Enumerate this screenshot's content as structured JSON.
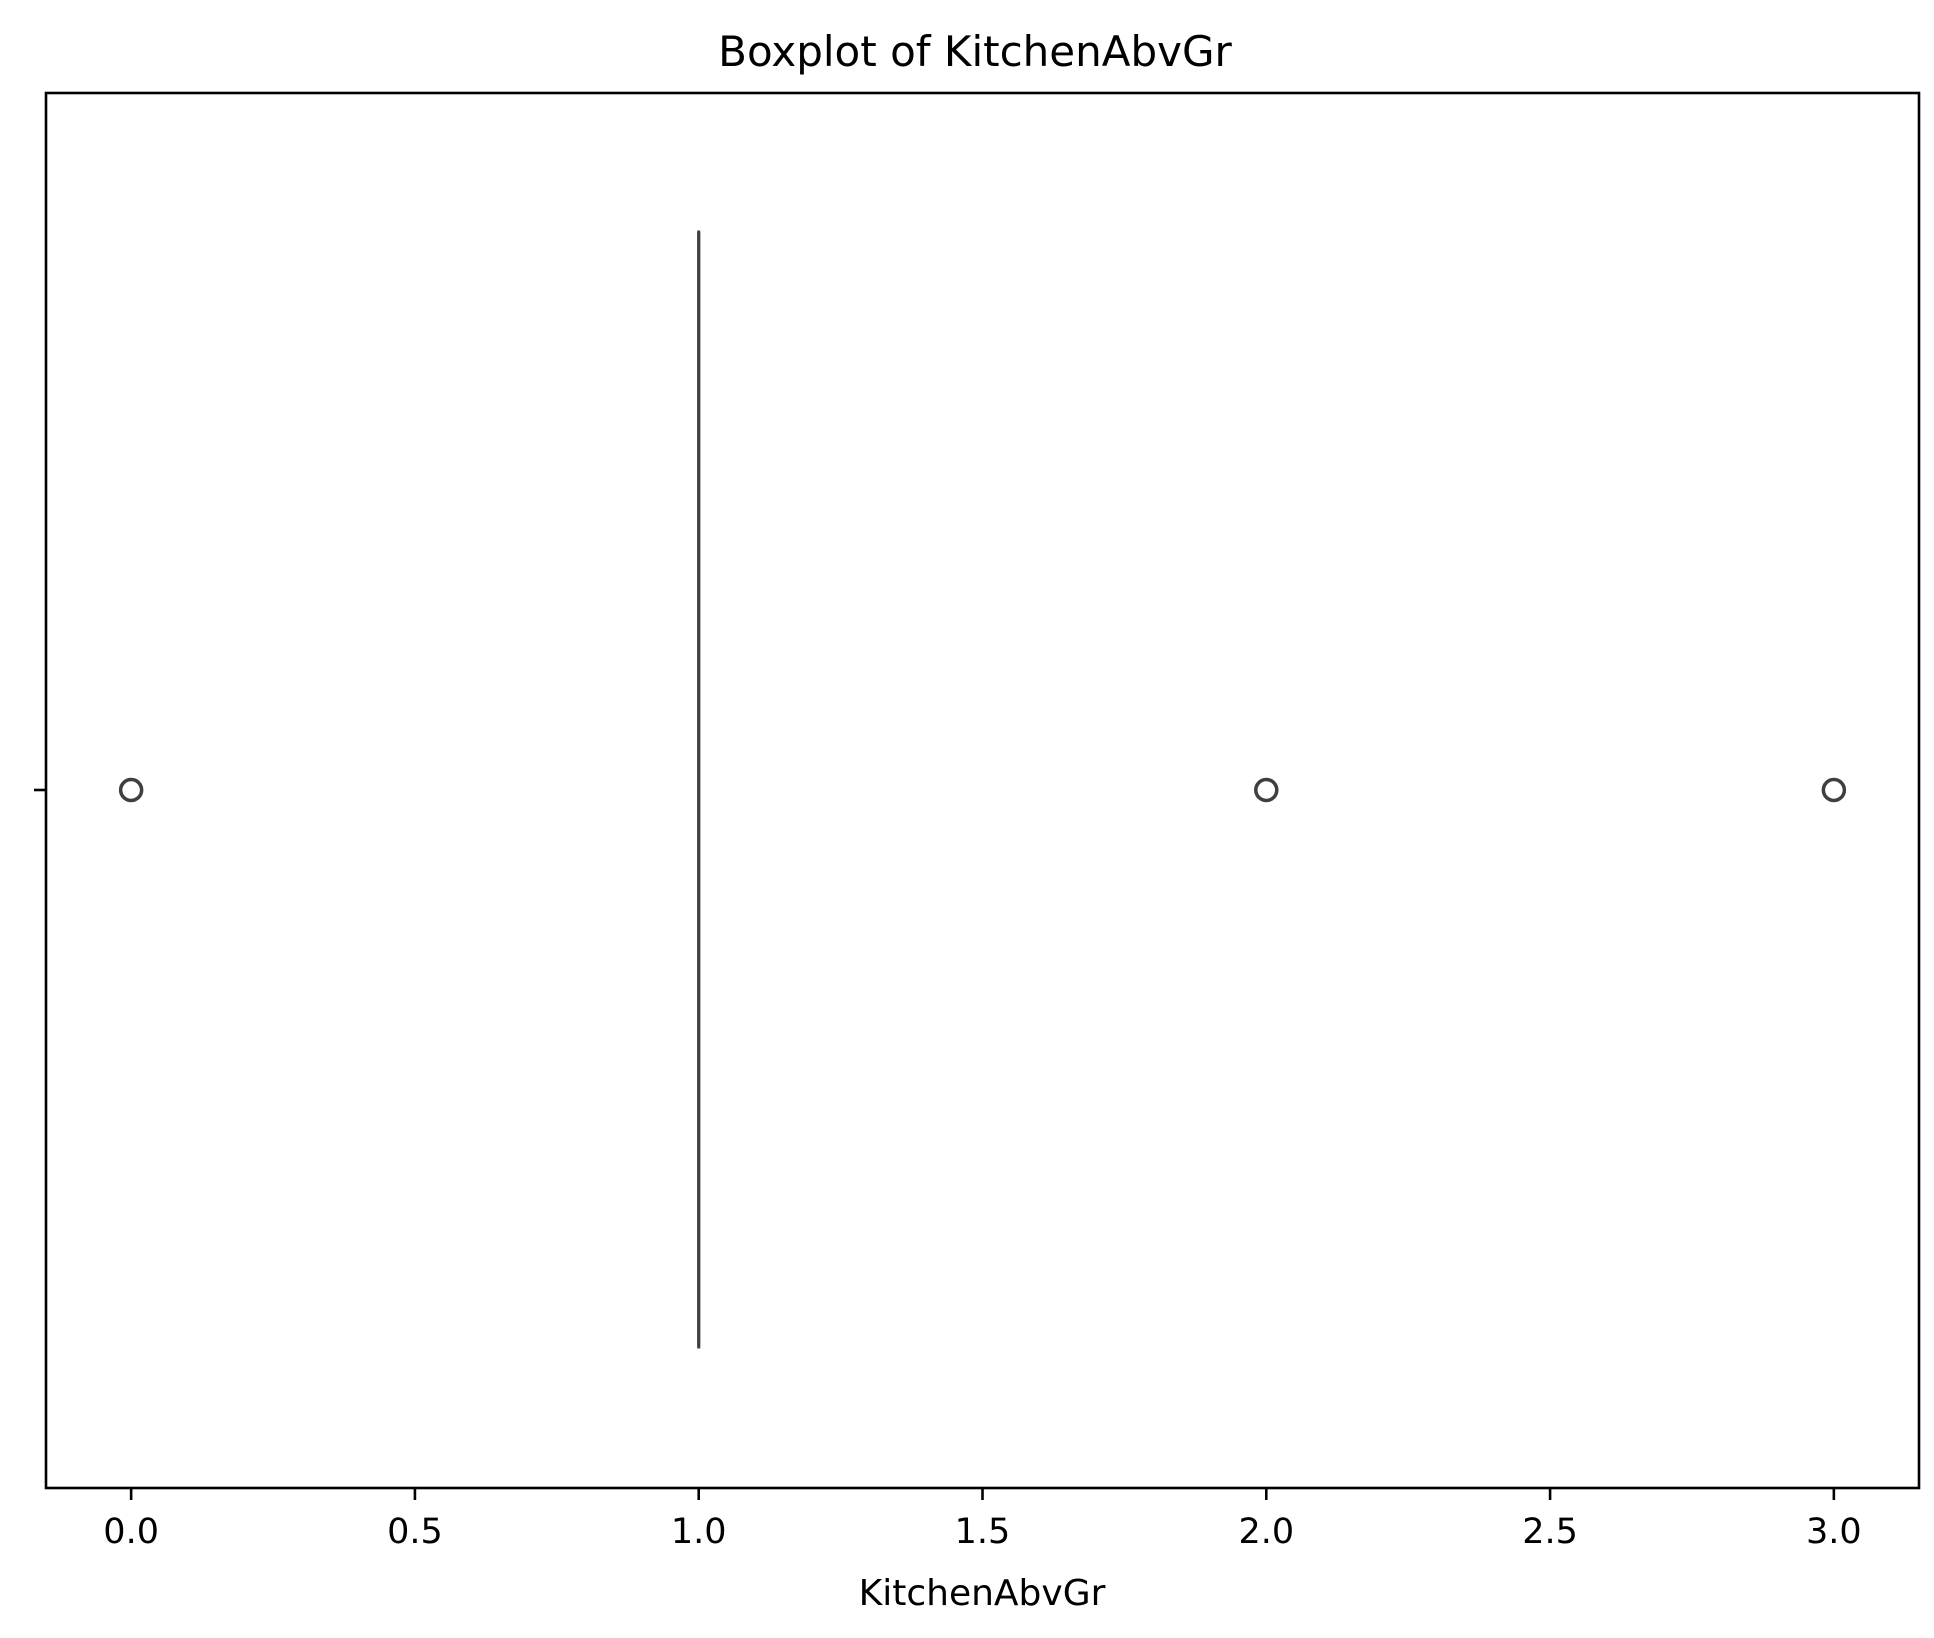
{
  "chart_data": {
    "type": "boxplot",
    "orientation": "horizontal",
    "title": "Boxplot of KitchenAbvGr",
    "xlabel": "KitchenAbvGr",
    "ylabel": "",
    "xlim": [
      -0.15,
      3.15
    ],
    "xticks": [
      0.0,
      0.5,
      1.0,
      1.5,
      2.0,
      2.5,
      3.0
    ],
    "xtick_labels": [
      "0.0",
      "0.5",
      "1.0",
      "1.5",
      "2.0",
      "2.5",
      "3.0"
    ],
    "grid": false,
    "legend": "none",
    "series": [
      {
        "variable": "KitchenAbvGr",
        "min_whisker": 1,
        "q1": 1,
        "median": 1,
        "q3": 1,
        "max_whisker": 1,
        "outliers": [
          0,
          2,
          3
        ]
      }
    ],
    "colors": {
      "box_line": "#3f3f3f",
      "axes": "#000000",
      "background": "#ffffff"
    }
  }
}
